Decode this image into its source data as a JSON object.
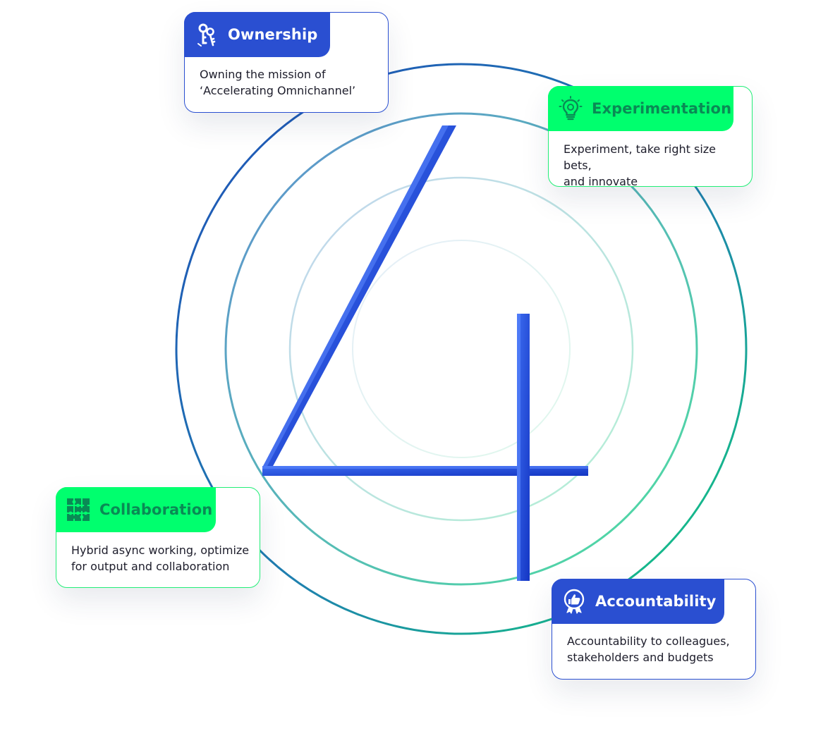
{
  "diagram": {
    "center_numeral": "4",
    "colors": {
      "blue": "#2a4fd1",
      "green": "#00ff6e",
      "green_text": "#0a8a55",
      "numeral": "#1e44d6"
    },
    "cards": [
      {
        "key": "ownership",
        "title": "Ownership",
        "description_lines": [
          "Owning the mission of",
          "‘Accelerating Omnichannel’"
        ],
        "icon": "keys-icon",
        "theme": "blue"
      },
      {
        "key": "experimentation",
        "title": "Experimentation",
        "description_lines": [
          "Experiment, take right size bets,",
          "and innovate"
        ],
        "icon": "lightbulb-icon",
        "theme": "green"
      },
      {
        "key": "collaboration",
        "title": "Collaboration",
        "description_lines": [
          "Hybrid async working, optimize",
          "for output and collaboration"
        ],
        "icon": "puzzle-icon",
        "theme": "green"
      },
      {
        "key": "accountability",
        "title": "Accountability",
        "description_lines": [
          "Accountability to colleagues,",
          "stakeholders and budgets"
        ],
        "icon": "thumbs-up-badge-icon",
        "theme": "blue"
      }
    ]
  }
}
